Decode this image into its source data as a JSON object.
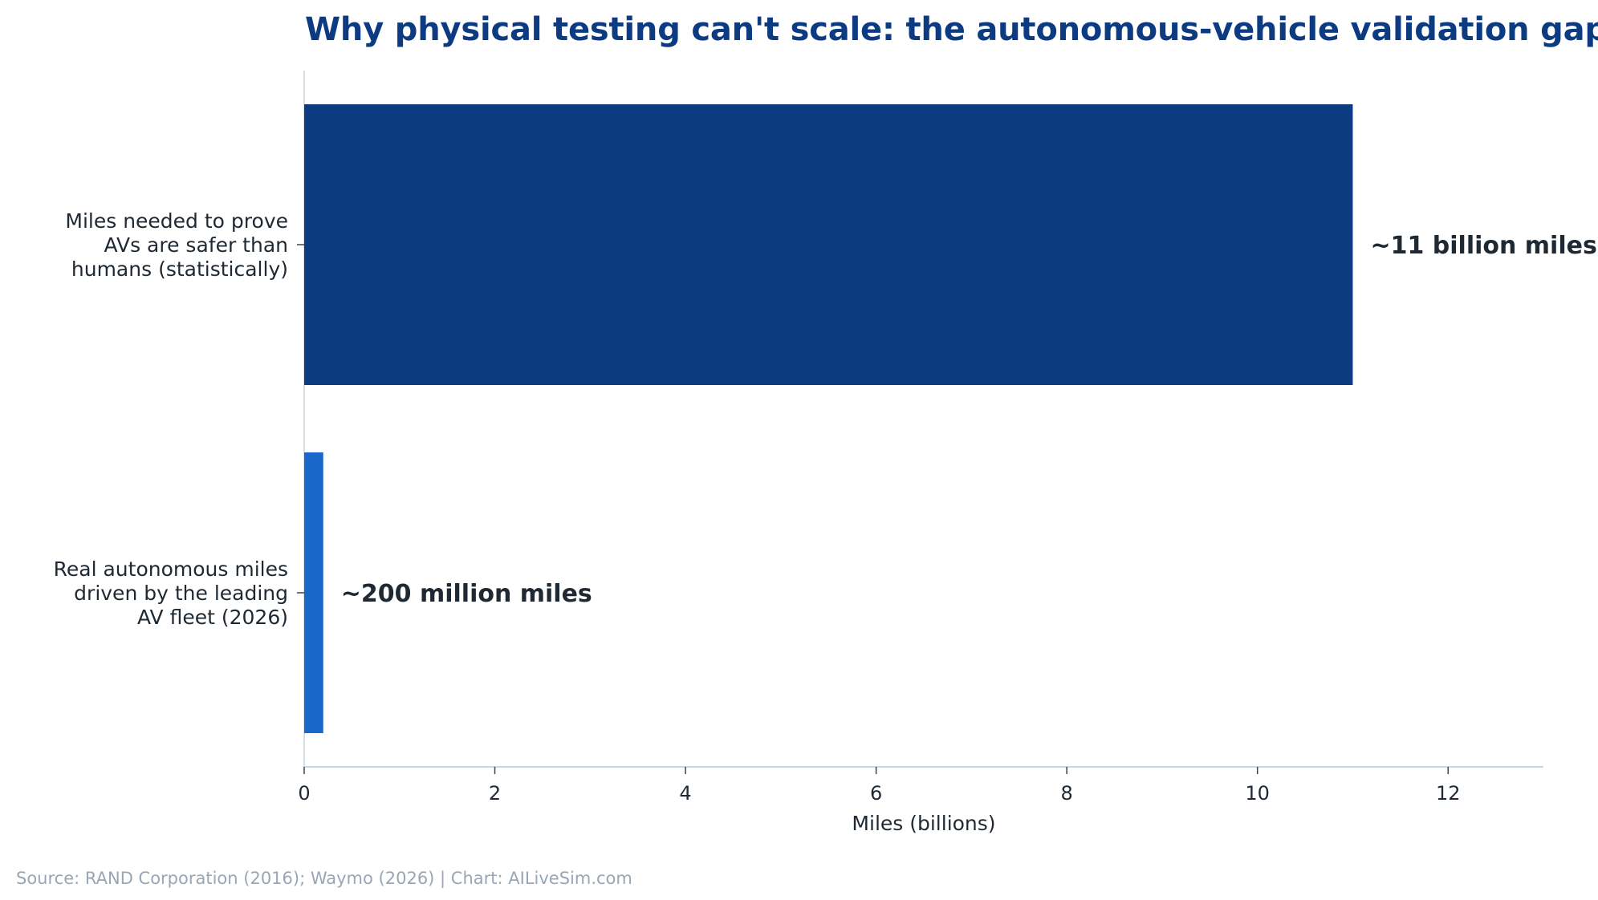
{
  "chart_data": {
    "type": "bar",
    "orientation": "horizontal",
    "title": "Why physical testing can't scale: the autonomous-vehicle validation gap",
    "xlabel": "Miles (billions)",
    "ylabel": "",
    "xlim": [
      0,
      13
    ],
    "xticks": [
      0,
      2,
      4,
      6,
      8,
      10,
      12
    ],
    "grid": false,
    "legend": "none",
    "categories": [
      [
        "Miles needed to prove",
        "AVs are safer than",
        "humans (statistically)"
      ],
      [
        "Real autonomous miles",
        "driven by the leading",
        "AV fleet (2026)"
      ]
    ],
    "values": [
      11.0,
      0.2
    ],
    "data_labels": [
      "~11 billion miles",
      "~200 million miles"
    ],
    "colors": [
      "#0d3b82",
      "#1967c9"
    ]
  },
  "footer": {
    "source": "Source: RAND Corporation (2016); Waymo (2026)  |  Chart: AILiveSim.com"
  },
  "colors": {
    "title": "#0d3b82",
    "axis": "#c9d6e0",
    "text": "#1f2933",
    "source": "#98a6b5"
  }
}
